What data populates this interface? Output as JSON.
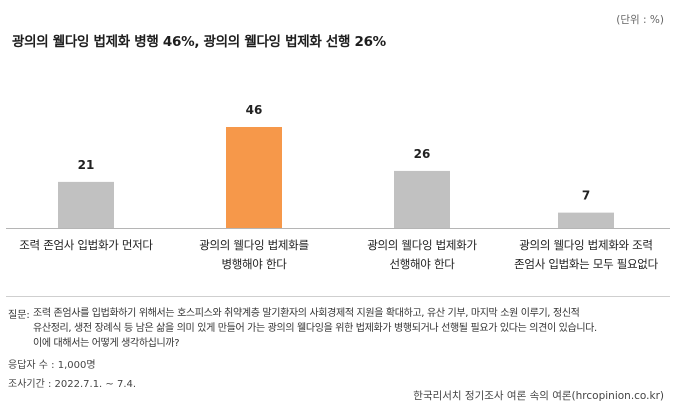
{
  "unit_note": "(단위 : %)",
  "chart_data": {
    "type": "bar",
    "title": "광의의 웰다잉 법제화 병행 46%, 광의의 웰다잉 법제화 선행 26%",
    "categories": [
      [
        "조력 존엄사 입법화가 먼저다"
      ],
      [
        "광의의 웰다잉 법제화를",
        "병행해야 한다"
      ],
      [
        "광의의 웰다잉 법제화가",
        "선행해야 한다"
      ],
      [
        "광의의 웰다잉 법제화와 조력",
        "존엄사 입법화는 모두 필요없다"
      ]
    ],
    "values": [
      21,
      46,
      26,
      7
    ],
    "highlight_index": 1,
    "colors": {
      "default": "#c1c1c1",
      "highlight": "#f6984a",
      "baseline": "#b5b5b5"
    },
    "ylim": [
      0,
      46
    ],
    "grid": false,
    "legend": "none"
  },
  "question": {
    "tag": "질문:",
    "lines": [
      "조력 존엄사를 입법화하기 위해서는 호스피스와 취약계층 말기환자의 사회경제적 지원을 확대하고, 유산 기부, 마지막 소원 이루기, 정신적",
      "유산정리, 생전 장례식 등 남은 삶을 의미 있게 만들어 가는 광의의 웰다잉을 위한 법제화가 병행되거나 선행될 필요가 있다는 의견이 있습니다.",
      "이에 대해서는 어떻게 생각하십니까?"
    ]
  },
  "respondents": "응답자 수 : 1,000명",
  "survey_period": "조사기간 : 2022.7.1. ~ 7.4.",
  "source": "한국리서치 정기조사 여론 속의 여론(hrcopinion.co.kr)"
}
